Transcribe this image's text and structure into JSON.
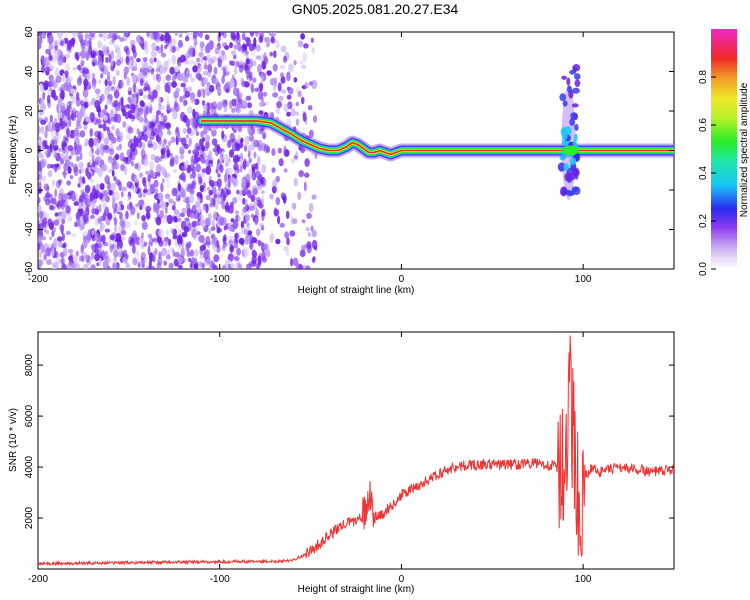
{
  "figure_title": "GN05.2025.081.20.27.E34",
  "chart_data": [
    {
      "type": "heatmap",
      "title": "GN05.2025.081.20.27.E34",
      "xlabel": "Height of straight line (km)",
      "ylabel": "Frequency (Hz)",
      "xlim": [
        -200,
        150
      ],
      "ylim": [
        -60,
        60
      ],
      "xticks": [
        "-200",
        "-100",
        "0",
        "100"
      ],
      "yticks": [
        "60",
        "40",
        "20",
        "0",
        "-20",
        "-40",
        "-60"
      ],
      "colorbar": {
        "label": "Normalized spectral amplitude",
        "range": [
          0,
          1
        ],
        "ticks": [
          "0.0",
          "0.2",
          "0.4",
          "0.6",
          "0.8"
        ]
      },
      "ridge": {
        "x": [
          -110,
          -95,
          -80,
          -72,
          -66,
          -60,
          -55,
          -50,
          -45,
          -40,
          -35,
          -30,
          -27,
          -24,
          -21,
          -18,
          -15,
          -12,
          -9,
          -6,
          -3,
          0,
          5,
          20,
          85,
          95,
          100,
          150
        ],
        "y": [
          15,
          15,
          15,
          14,
          11,
          8,
          5,
          3,
          1,
          0,
          0,
          2,
          4,
          3,
          1,
          -1,
          -1,
          0,
          -1,
          -2,
          -1,
          0,
          0,
          0,
          0,
          0,
          0,
          0
        ]
      },
      "noise_region_x": [
        -200,
        -55
      ],
      "burst": {
        "x": 92,
        "frequency_range": [
          -22,
          42
        ]
      }
    },
    {
      "type": "line",
      "xlabel": "Height of straight line (km)",
      "ylabel": "SNR (10 * v/v)",
      "xlim": [
        -200,
        150
      ],
      "ylim": [
        0,
        9300
      ],
      "xticks": [
        "-200",
        "-100",
        "0",
        "100"
      ],
      "yticks": [
        "2000",
        "4000",
        "6000",
        "8000"
      ],
      "color": "#ee3333",
      "series": [
        {
          "x": [
            -200,
            -150,
            -100,
            -70,
            -60,
            -55,
            -50,
            -45,
            -40,
            -35,
            -30,
            -25,
            -20,
            -17,
            -15,
            -10,
            -5,
            0,
            5,
            10,
            15,
            20,
            25,
            30,
            40,
            50,
            60,
            70,
            80,
            85,
            90,
            92,
            95,
            98,
            100,
            105,
            110,
            120,
            130,
            140,
            150
          ],
          "values": [
            200,
            250,
            280,
            300,
            350,
            500,
            700,
            1000,
            1300,
            1600,
            1800,
            1900,
            2200,
            3000,
            2000,
            2200,
            2500,
            2900,
            3100,
            3300,
            3500,
            3700,
            3900,
            4000,
            4100,
            4100,
            4100,
            4150,
            4100,
            4000,
            3700,
            7000,
            5000,
            2500,
            3500,
            4000,
            3800,
            4000,
            3900,
            3800,
            3900
          ]
        }
      ]
    }
  ]
}
